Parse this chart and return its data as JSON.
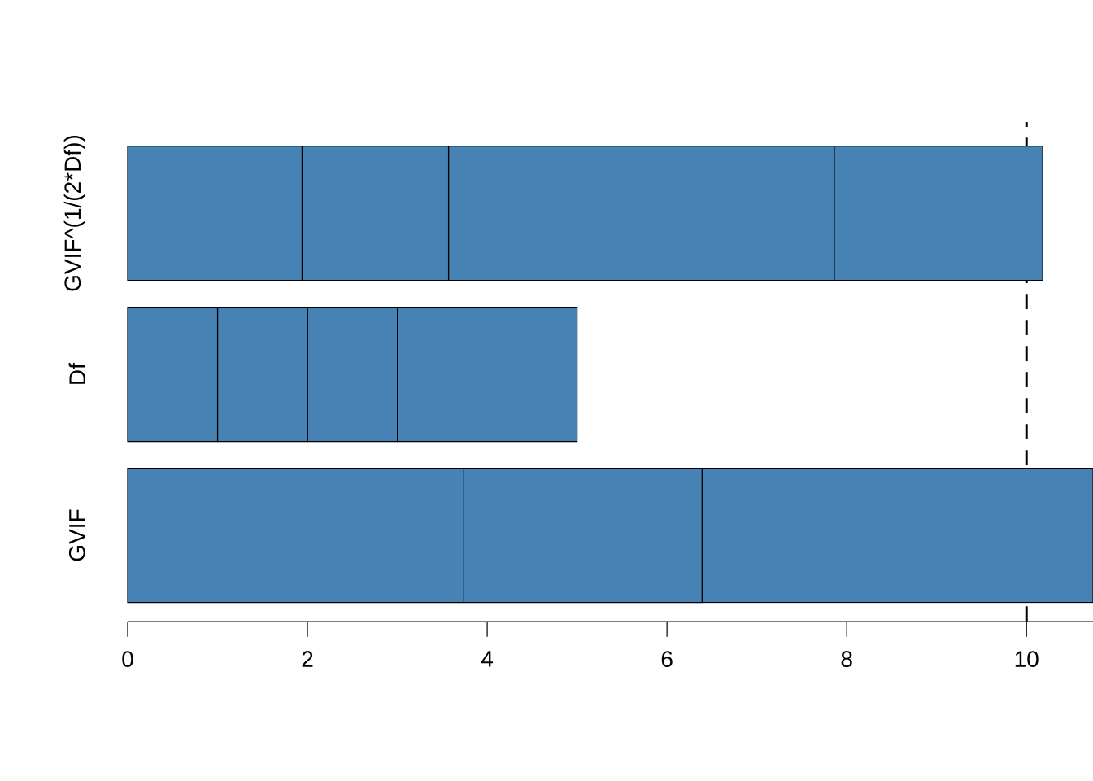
{
  "chart_data": {
    "type": "bar",
    "orientation": "horizontal",
    "stacked": true,
    "categories": [
      "GVIF^(1/(2*Df))",
      "Df",
      "GVIF"
    ],
    "series": [
      {
        "color": "#4682b4",
        "values": [
          1.94,
          1,
          3.74
        ]
      },
      {
        "color": "#4682b4",
        "values": [
          1.63,
          1,
          2.65
        ]
      },
      {
        "color": "#4682b4",
        "values": [
          4.29,
          1,
          4.35
        ]
      },
      {
        "color": "#4682b4",
        "values": [
          2.32,
          2,
          null
        ]
      }
    ],
    "xlim": [
      0,
      10.74
    ],
    "xticks": [
      0,
      2,
      4,
      6,
      8,
      10
    ],
    "ref_lines": [
      {
        "axis": "x",
        "value": 10,
        "line_style": "dashed"
      }
    ]
  }
}
